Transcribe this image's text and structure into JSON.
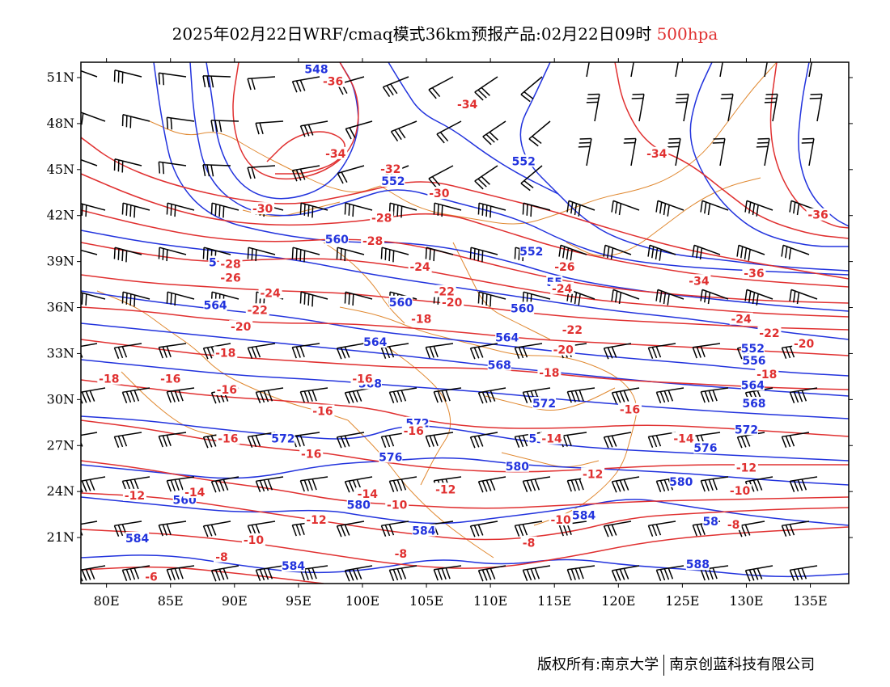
{
  "title": {
    "text": "2025年02月22日WRF/cmaq模式36km预报产品:02月22日09时",
    "level": "500hpa"
  },
  "footer": {
    "left": "版权所有:南京大学",
    "right": "南京创蓝科技有限公司"
  },
  "colors": {
    "geopotential": "#2233dd",
    "temperature": "#e03030",
    "borders": "#e08830",
    "wind": "#000000"
  },
  "axes": {
    "lon_ticks": [
      "80E",
      "85E",
      "90E",
      "95E",
      "100E",
      "105E",
      "110E",
      "115E",
      "120E",
      "125E",
      "130E",
      "135E"
    ],
    "lat_ticks": [
      "51N",
      "48N",
      "45N",
      "42N",
      "39N",
      "36N",
      "33N",
      "30N",
      "27N",
      "24N",
      "21N"
    ],
    "lon_range": [
      78,
      138
    ],
    "lat_range": [
      18,
      52
    ]
  },
  "temp_labels": [
    {
      "text": "-36",
      "lon": 97.7,
      "lat": 50.7
    },
    {
      "text": "-34",
      "lon": 108.2,
      "lat": 49.2
    },
    {
      "text": "-34",
      "lon": 97.9,
      "lat": 46.0
    },
    {
      "text": "-34",
      "lon": 123.0,
      "lat": 46.0
    },
    {
      "text": "-32",
      "lon": 102.2,
      "lat": 45.0
    },
    {
      "text": "-30",
      "lon": 106.0,
      "lat": 43.4
    },
    {
      "text": "-30",
      "lon": 92.2,
      "lat": 42.4
    },
    {
      "text": "-28",
      "lon": 101.5,
      "lat": 41.8
    },
    {
      "text": "-28",
      "lon": 100.8,
      "lat": 40.3
    },
    {
      "text": "-28",
      "lon": 89.7,
      "lat": 38.8
    },
    {
      "text": "-26",
      "lon": 89.7,
      "lat": 37.9
    },
    {
      "text": "-26",
      "lon": 115.8,
      "lat": 38.6
    },
    {
      "text": "-24",
      "lon": 104.5,
      "lat": 38.6
    },
    {
      "text": "-24",
      "lon": 92.8,
      "lat": 36.9
    },
    {
      "text": "-24",
      "lon": 115.6,
      "lat": 37.2
    },
    {
      "text": "-22",
      "lon": 106.4,
      "lat": 37.0
    },
    {
      "text": "-22",
      "lon": 91.8,
      "lat": 35.8
    },
    {
      "text": "-22",
      "lon": 116.4,
      "lat": 34.5
    },
    {
      "text": "-22",
      "lon": 131.8,
      "lat": 34.3
    },
    {
      "text": "-20",
      "lon": 107.0,
      "lat": 36.3
    },
    {
      "text": "-20",
      "lon": 90.5,
      "lat": 34.7
    },
    {
      "text": "-20",
      "lon": 115.7,
      "lat": 33.2
    },
    {
      "text": "-20",
      "lon": 134.5,
      "lat": 33.6
    },
    {
      "text": "-18",
      "lon": 104.6,
      "lat": 35.2
    },
    {
      "text": "-18",
      "lon": 89.3,
      "lat": 33.0
    },
    {
      "text": "-18",
      "lon": 114.6,
      "lat": 31.7
    },
    {
      "text": "-18",
      "lon": 131.6,
      "lat": 31.6
    },
    {
      "text": "-18",
      "lon": 80.2,
      "lat": 31.3
    },
    {
      "text": "-16",
      "lon": 85.0,
      "lat": 31.3
    },
    {
      "text": "-16",
      "lon": 100.0,
      "lat": 31.3
    },
    {
      "text": "-16",
      "lon": 89.4,
      "lat": 30.6
    },
    {
      "text": "-16",
      "lon": 96.9,
      "lat": 29.2
    },
    {
      "text": "-16",
      "lon": 120.9,
      "lat": 29.3
    },
    {
      "text": "-16",
      "lon": 104.0,
      "lat": 27.9
    },
    {
      "text": "-16",
      "lon": 89.5,
      "lat": 27.4
    },
    {
      "text": "-16",
      "lon": 96.0,
      "lat": 26.4
    },
    {
      "text": "-14",
      "lon": 125.1,
      "lat": 27.4
    },
    {
      "text": "-14",
      "lon": 114.8,
      "lat": 27.4
    },
    {
      "text": "-14",
      "lon": 100.4,
      "lat": 23.8
    },
    {
      "text": "-14",
      "lon": 86.9,
      "lat": 23.9
    },
    {
      "text": "-12",
      "lon": 130.0,
      "lat": 25.5
    },
    {
      "text": "-12",
      "lon": 118.0,
      "lat": 25.1
    },
    {
      "text": "-12",
      "lon": 106.5,
      "lat": 24.1
    },
    {
      "text": "-12",
      "lon": 82.2,
      "lat": 23.7
    },
    {
      "text": "-12",
      "lon": 96.4,
      "lat": 22.1
    },
    {
      "text": "-10",
      "lon": 129.5,
      "lat": 24.0
    },
    {
      "text": "-10",
      "lon": 102.7,
      "lat": 23.1
    },
    {
      "text": "-10",
      "lon": 115.5,
      "lat": 22.1
    },
    {
      "text": "-10",
      "lon": 91.5,
      "lat": 20.8
    },
    {
      "text": "-8",
      "lon": 129.0,
      "lat": 21.8
    },
    {
      "text": "-8",
      "lon": 113.0,
      "lat": 20.6
    },
    {
      "text": "-8",
      "lon": 103.0,
      "lat": 19.9
    },
    {
      "text": "-8",
      "lon": 89.0,
      "lat": 19.7
    },
    {
      "text": "-6",
      "lon": 83.5,
      "lat": 18.4
    },
    {
      "text": "-36",
      "lon": 130.6,
      "lat": 38.2
    },
    {
      "text": "-34",
      "lon": 126.3,
      "lat": 37.7
    },
    {
      "text": "-24",
      "lon": 129.6,
      "lat": 35.2
    },
    {
      "text": "-36",
      "lon": 135.6,
      "lat": 42.0
    }
  ],
  "height_labels": [
    {
      "text": "548",
      "lon": 96.4,
      "lat": 51.5
    },
    {
      "text": "552",
      "lon": 112.6,
      "lat": 45.5
    },
    {
      "text": "552",
      "lon": 102.4,
      "lat": 44.2
    },
    {
      "text": "560",
      "lon": 98.0,
      "lat": 40.4
    },
    {
      "text": "552",
      "lon": 113.2,
      "lat": 39.6
    },
    {
      "text": "5",
      "lon": 88.3,
      "lat": 38.9
    },
    {
      "text": "55",
      "lon": 115.0,
      "lat": 37.6
    },
    {
      "text": "564",
      "lon": 88.5,
      "lat": 36.1
    },
    {
      "text": "560",
      "lon": 103.0,
      "lat": 36.3
    },
    {
      "text": "560",
      "lon": 112.5,
      "lat": 35.9
    },
    {
      "text": "564",
      "lon": 101.0,
      "lat": 33.7
    },
    {
      "text": "564",
      "lon": 111.3,
      "lat": 34.0
    },
    {
      "text": "552",
      "lon": 130.5,
      "lat": 33.3
    },
    {
      "text": "556",
      "lon": 130.6,
      "lat": 32.5
    },
    {
      "text": "568",
      "lon": 110.7,
      "lat": 32.2
    },
    {
      "text": "568",
      "lon": 100.6,
      "lat": 31.0
    },
    {
      "text": "564",
      "lon": 130.5,
      "lat": 30.9
    },
    {
      "text": "568",
      "lon": 130.6,
      "lat": 29.7
    },
    {
      "text": "572",
      "lon": 114.2,
      "lat": 29.7
    },
    {
      "text": "572",
      "lon": 104.3,
      "lat": 28.4
    },
    {
      "text": "572",
      "lon": 130.0,
      "lat": 28.0
    },
    {
      "text": "572",
      "lon": 93.8,
      "lat": 27.4
    },
    {
      "text": "5",
      "lon": 113.3,
      "lat": 27.4
    },
    {
      "text": "576",
      "lon": 102.2,
      "lat": 26.2
    },
    {
      "text": "576",
      "lon": 126.8,
      "lat": 26.8
    },
    {
      "text": "580",
      "lon": 112.1,
      "lat": 25.6
    },
    {
      "text": "580",
      "lon": 124.9,
      "lat": 24.6
    },
    {
      "text": "560",
      "lon": 86.1,
      "lat": 23.4
    },
    {
      "text": "580",
      "lon": 99.7,
      "lat": 23.1
    },
    {
      "text": "584",
      "lon": 117.3,
      "lat": 22.4
    },
    {
      "text": "58",
      "lon": 127.2,
      "lat": 22.0
    },
    {
      "text": "584",
      "lon": 82.4,
      "lat": 20.9
    },
    {
      "text": "584",
      "lon": 104.8,
      "lat": 21.4
    },
    {
      "text": "584",
      "lon": 94.6,
      "lat": 19.1
    },
    {
      "text": "588",
      "lon": 126.2,
      "lat": 19.2
    }
  ]
}
